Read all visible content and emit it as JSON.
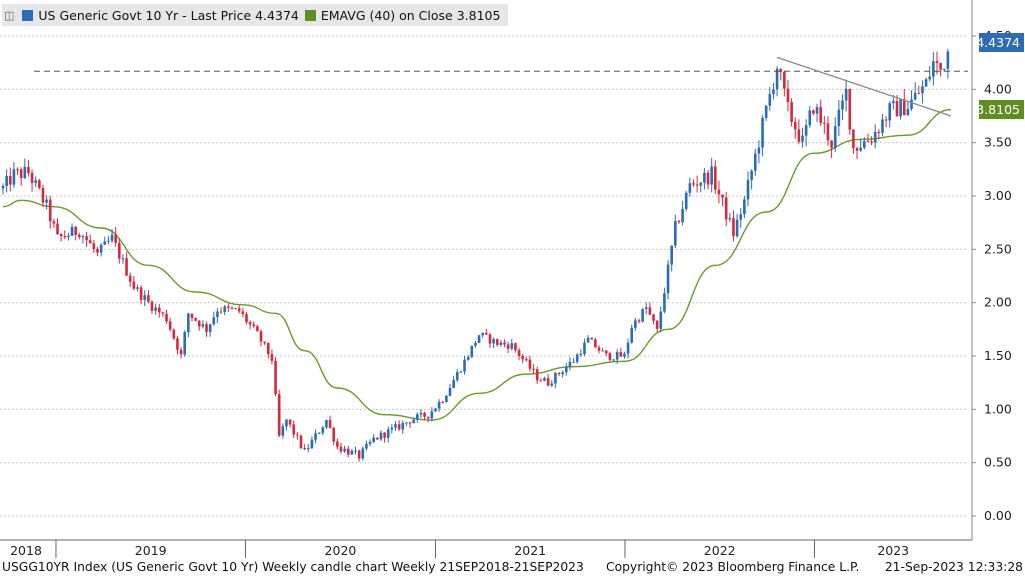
{
  "legend": {
    "series1": "US Generic Govt 10 Yr - Last Price 4.4374",
    "series2": "EMAVG (40)   on Close 3.8105"
  },
  "footer": {
    "left": "USGG10YR Index (US Generic Govt 10 Yr) Weekly candle chart  Weekly 21SEP2018-21SEP2023",
    "center": "Copyright© 2023 Bloomberg Finance L.P.",
    "right": "21-Sep-2023 12:33:28"
  },
  "tags": {
    "last": "4.4374",
    "ema": "3.8105"
  },
  "colors": {
    "up": "#2b6cb8",
    "down": "#d8283c",
    "ema": "#6a9a2a",
    "trend": "#8a8a8a",
    "last_tag": "#2e6db4",
    "ema_tag": "#5e8e22"
  },
  "chart_data": {
    "type": "candlestick",
    "title": "US Generic Govt 10 Yr",
    "ylim": [
      0,
      4.5
    ],
    "yticks": [
      "0.00",
      "0.50",
      "1.00",
      "1.50",
      "2.00",
      "2.50",
      "3.00",
      "3.50",
      "4.00",
      "4.50"
    ],
    "x_labels": [
      "2018",
      "2019",
      "2020",
      "2021",
      "2022",
      "2023"
    ],
    "last_price": 4.4374,
    "ema_last": 3.8105,
    "resistance_level": 4.17,
    "anchors": [
      [
        "2018-09-21",
        3.07
      ],
      [
        "2018-10-12",
        3.2
      ],
      [
        "2018-11-09",
        3.22
      ],
      [
        "2018-12-14",
        2.9
      ],
      [
        "2019-01-04",
        2.6
      ],
      [
        "2019-02-15",
        2.68
      ],
      [
        "2019-03-22",
        2.45
      ],
      [
        "2019-04-19",
        2.6
      ],
      [
        "2019-05-31",
        2.15
      ],
      [
        "2019-06-28",
        2.0
      ],
      [
        "2019-08-02",
        1.85
      ],
      [
        "2019-08-30",
        1.5
      ],
      [
        "2019-09-13",
        1.9
      ],
      [
        "2019-10-18",
        1.75
      ],
      [
        "2019-11-08",
        1.94
      ],
      [
        "2019-12-20",
        1.92
      ],
      [
        "2020-01-24",
        1.7
      ],
      [
        "2020-02-21",
        1.47
      ],
      [
        "2020-03-06",
        0.74
      ],
      [
        "2020-03-20",
        0.9
      ],
      [
        "2020-04-24",
        0.6
      ],
      [
        "2020-06-05",
        0.9
      ],
      [
        "2020-06-26",
        0.65
      ],
      [
        "2020-08-07",
        0.56
      ],
      [
        "2020-09-04",
        0.72
      ],
      [
        "2020-10-23",
        0.84
      ],
      [
        "2020-11-13",
        0.9
      ],
      [
        "2020-12-18",
        0.95
      ],
      [
        "2021-01-15",
        1.1
      ],
      [
        "2021-02-26",
        1.45
      ],
      [
        "2021-03-26",
        1.7
      ],
      [
        "2021-04-30",
        1.62
      ],
      [
        "2021-05-28",
        1.6
      ],
      [
        "2021-07-16",
        1.3
      ],
      [
        "2021-08-06",
        1.25
      ],
      [
        "2021-09-24",
        1.46
      ],
      [
        "2021-10-22",
        1.65
      ],
      [
        "2021-11-26",
        1.5
      ],
      [
        "2021-12-31",
        1.5
      ],
      [
        "2022-01-14",
        1.78
      ],
      [
        "2022-02-11",
        1.95
      ],
      [
        "2022-03-04",
        1.73
      ],
      [
        "2022-04-08",
        2.7
      ],
      [
        "2022-05-06",
        3.1
      ],
      [
        "2022-06-17",
        3.2
      ],
      [
        "2022-07-29",
        2.65
      ],
      [
        "2022-08-19",
        2.95
      ],
      [
        "2022-09-30",
        3.8
      ],
      [
        "2022-10-21",
        4.22
      ],
      [
        "2022-11-11",
        3.8
      ],
      [
        "2022-12-09",
        3.5
      ],
      [
        "2022-12-30",
        3.85
      ],
      [
        "2023-02-03",
        3.5
      ],
      [
        "2023-03-03",
        3.97
      ],
      [
        "2023-03-17",
        3.45
      ],
      [
        "2023-04-21",
        3.55
      ],
      [
        "2023-05-26",
        3.8
      ],
      [
        "2023-06-30",
        3.85
      ],
      [
        "2023-08-04",
        4.05
      ],
      [
        "2023-08-18",
        4.25
      ],
      [
        "2023-09-01",
        4.18
      ],
      [
        "2023-09-21",
        4.4374
      ]
    ],
    "ema": [
      [
        "2018-09-21",
        2.9
      ],
      [
        "2018-10-26",
        2.96
      ],
      [
        "2018-12-28",
        2.9
      ],
      [
        "2019-03-29",
        2.7
      ],
      [
        "2019-06-28",
        2.35
      ],
      [
        "2019-09-27",
        2.1
      ],
      [
        "2019-12-27",
        1.98
      ],
      [
        "2020-02-28",
        1.9
      ],
      [
        "2020-04-24",
        1.55
      ],
      [
        "2020-06-26",
        1.2
      ],
      [
        "2020-09-25",
        0.95
      ],
      [
        "2020-12-25",
        0.9
      ],
      [
        "2021-03-26",
        1.15
      ],
      [
        "2021-06-25",
        1.33
      ],
      [
        "2021-09-24",
        1.4
      ],
      [
        "2021-12-31",
        1.45
      ],
      [
        "2022-03-25",
        1.75
      ],
      [
        "2022-06-24",
        2.35
      ],
      [
        "2022-09-30",
        2.85
      ],
      [
        "2022-12-30",
        3.4
      ],
      [
        "2023-03-31",
        3.53
      ],
      [
        "2023-06-30",
        3.57
      ],
      [
        "2023-09-21",
        3.8105
      ]
    ],
    "trendline": [
      [
        "2022-10-21",
        4.3
      ],
      [
        "2023-09-21",
        3.75
      ]
    ]
  }
}
